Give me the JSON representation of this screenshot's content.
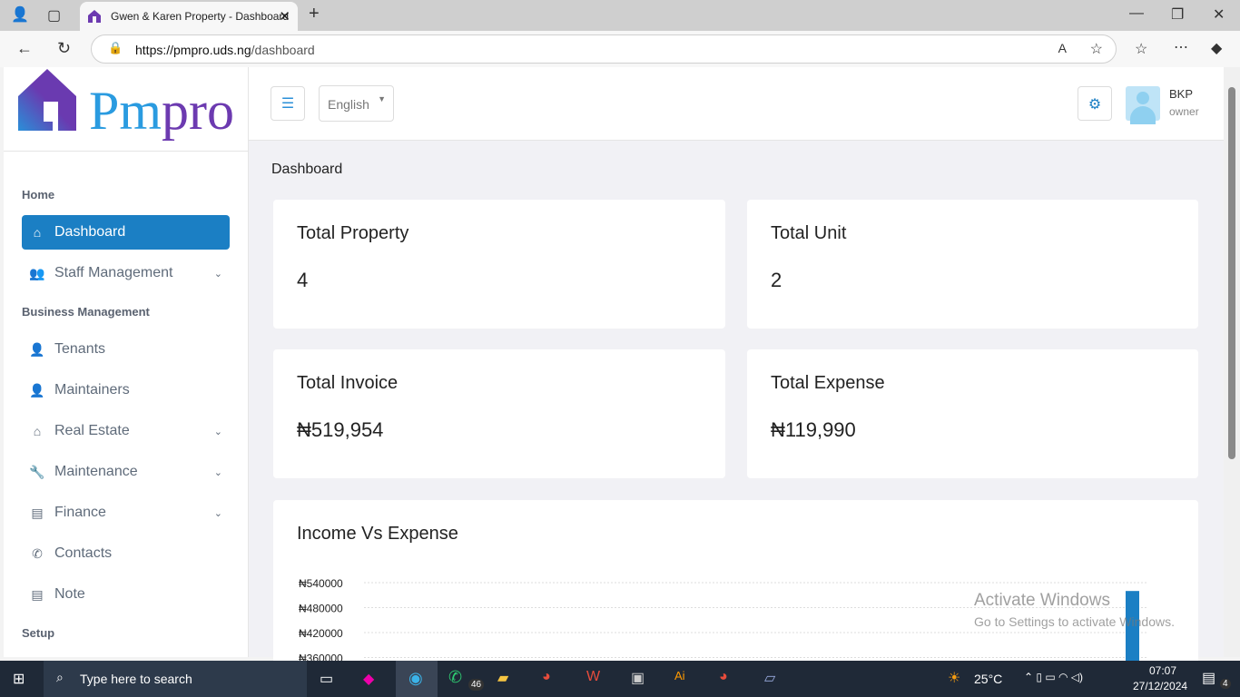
{
  "browser": {
    "tab_title": "Gwen & Karen Property - Dashboard",
    "url_host": "https://pmpro.uds.ng",
    "url_path": "/dashboard"
  },
  "logo": "Pmpro",
  "header": {
    "language": "English",
    "user_name": "BKP",
    "user_role": "owner"
  },
  "sidebar": {
    "sections": [
      "Home",
      "Business Management",
      "Setup"
    ],
    "items": [
      {
        "label": "Dashboard",
        "icon": "home-icon"
      },
      {
        "label": "Staff Management",
        "icon": "users-icon"
      },
      {
        "label": "Tenants",
        "icon": "user-icon"
      },
      {
        "label": "Maintainers",
        "icon": "user-check-icon"
      },
      {
        "label": "Real Estate",
        "icon": "home-icon"
      },
      {
        "label": "Maintenance",
        "icon": "wrench-icon"
      },
      {
        "label": "Finance",
        "icon": "file-icon"
      },
      {
        "label": "Contacts",
        "icon": "phone-icon"
      },
      {
        "label": "Note",
        "icon": "file-icon"
      }
    ]
  },
  "breadcrumb": "Dashboard",
  "stats": [
    {
      "title": "Total Property",
      "value": "4"
    },
    {
      "title": "Total Unit",
      "value": "2"
    },
    {
      "title": "Total Invoice",
      "value": "₦519,954"
    },
    {
      "title": "Total Expense",
      "value": "₦119,990"
    }
  ],
  "chart_data": {
    "type": "bar",
    "title": "Income Vs Expense",
    "ytick_labels": [
      "₦540000",
      "₦480000",
      "₦420000",
      "₦360000"
    ],
    "ylim_visible": [
      360000,
      540000
    ],
    "values": [
      519954
    ],
    "color": "#1b7fc4",
    "grid": true
  },
  "watermark": {
    "title": "Activate Windows",
    "subtitle": "Go to Settings to activate Windows."
  },
  "taskbar": {
    "search_placeholder": "Type here to search",
    "temperature": "25°C",
    "time": "07:07",
    "date": "27/12/2024",
    "whatsapp_badge": "46",
    "notif_count": "4"
  }
}
